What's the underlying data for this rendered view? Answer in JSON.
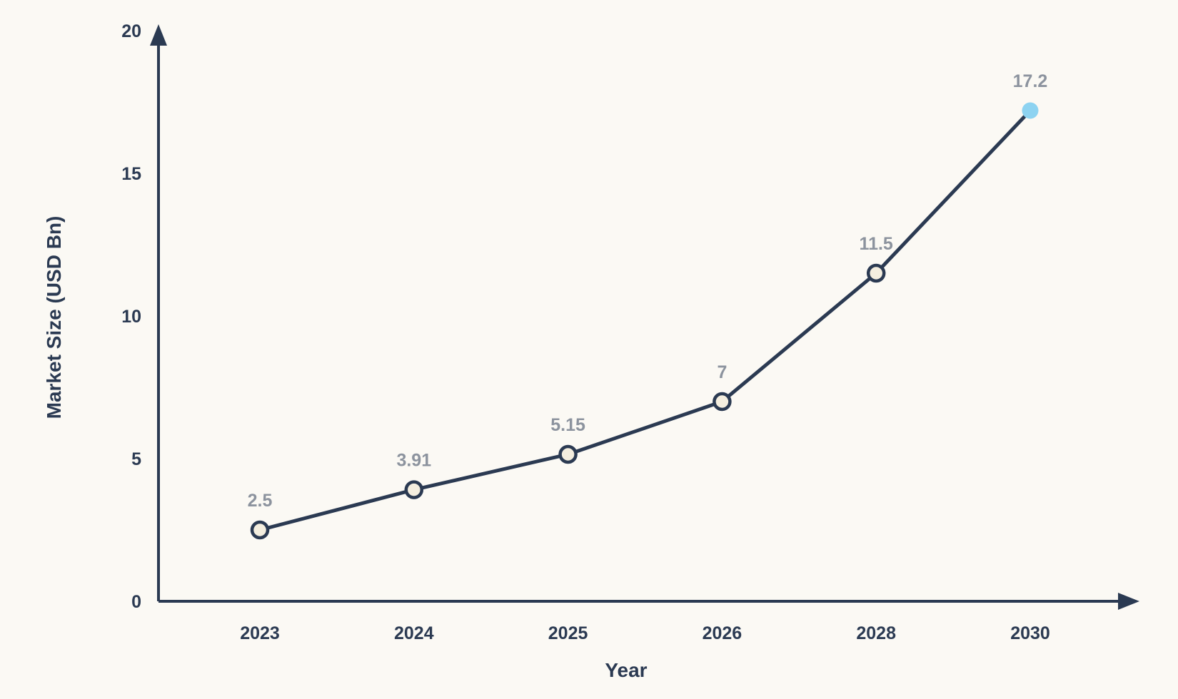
{
  "figure": {
    "background_color": "#FBF9F4"
  },
  "chart_data": {
    "type": "line",
    "title": "",
    "xlabel": "Year",
    "ylabel": "Market Size (USD Bn)",
    "categories": [
      "2023",
      "2024",
      "2025",
      "2026",
      "2028",
      "2030"
    ],
    "values": [
      2.5,
      3.91,
      5.15,
      7,
      11.5,
      17.2
    ],
    "point_labels": [
      "2.5",
      "3.91",
      "5.15",
      "7",
      "11.5",
      "17.2"
    ],
    "ylim": [
      0,
      20
    ],
    "y_ticks": [
      0,
      5,
      10,
      15,
      20
    ],
    "grid": false,
    "legend": false,
    "axes_have_arrowheads": true,
    "highlight_last_point": true,
    "colors": {
      "line": "#2B3A52",
      "axis": "#2B3A52",
      "axis_text": "#2B3A52",
      "marker_fill": "#F4EEDF",
      "marker_stroke": "#2B3A52",
      "highlight_marker_fill": "#8DD3F1",
      "point_label_text": "#8C939E",
      "background": "#FBF9F4"
    }
  }
}
